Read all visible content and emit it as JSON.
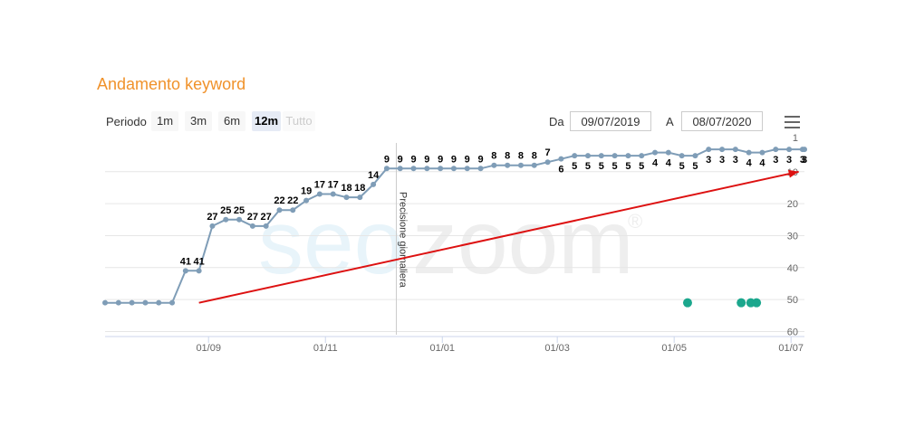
{
  "header": {
    "title": "Andamento keyword"
  },
  "controls": {
    "periodo_label": "Periodo",
    "ranges": [
      {
        "label": "1m",
        "state": "normal"
      },
      {
        "label": "3m",
        "state": "normal"
      },
      {
        "label": "6m",
        "state": "normal"
      },
      {
        "label": "12m",
        "state": "active"
      },
      {
        "label": "Tutto",
        "state": "disabled"
      }
    ],
    "from_label": "Da",
    "from_value": "09/07/2019",
    "to_label": "A",
    "to_value": "08/07/2020"
  },
  "menu": {
    "icon": "hamburger-menu-icon"
  },
  "watermark": {
    "text_a": "seo",
    "text_b": "zoom",
    "mark": "®"
  },
  "chart_data": {
    "type": "line",
    "x_ticks": [
      "01/09",
      "01/11",
      "01/01",
      "01/03",
      "01/05",
      "01/07"
    ],
    "y_ticks": [
      "1",
      "10",
      "20",
      "30",
      "40",
      "50",
      "60"
    ],
    "ylim": [
      60,
      1
    ],
    "y_reversed": true,
    "plot_line_label": "Precisione giornaliera",
    "plot_line_date": "2019-12-08",
    "series": [
      {
        "points": [
          [
            "2019-07-09",
            51
          ],
          [
            "2019-07-16",
            51
          ],
          [
            "2019-07-23",
            51
          ],
          [
            "2019-07-30",
            51
          ],
          [
            "2019-08-06",
            51
          ],
          [
            "2019-08-13",
            51
          ],
          [
            "2019-08-20",
            41
          ],
          [
            "2019-08-27",
            41
          ],
          [
            "2019-09-03",
            27
          ],
          [
            "2019-09-10",
            25
          ],
          [
            "2019-09-17",
            25
          ],
          [
            "2019-09-24",
            27
          ],
          [
            "2019-10-01",
            27
          ],
          [
            "2019-10-08",
            22
          ],
          [
            "2019-10-15",
            22
          ],
          [
            "2019-10-22",
            19
          ],
          [
            "2019-10-29",
            17
          ],
          [
            "2019-11-05",
            17
          ],
          [
            "2019-11-12",
            18
          ],
          [
            "2019-11-19",
            18
          ],
          [
            "2019-11-26",
            14
          ],
          [
            "2019-12-03",
            9
          ],
          [
            "2019-12-10",
            9
          ],
          [
            "2019-12-17",
            9
          ],
          [
            "2019-12-24",
            9
          ],
          [
            "2019-12-31",
            9
          ],
          [
            "2020-01-07",
            9
          ],
          [
            "2020-01-14",
            9
          ],
          [
            "2020-01-21",
            9
          ],
          [
            "2020-01-28",
            8
          ],
          [
            "2020-02-04",
            8
          ],
          [
            "2020-02-11",
            8
          ],
          [
            "2020-02-18",
            8
          ],
          [
            "2020-02-25",
            7
          ],
          [
            "2020-03-03",
            6
          ],
          [
            "2020-03-10",
            5
          ],
          [
            "2020-03-17",
            5
          ],
          [
            "2020-03-24",
            5
          ],
          [
            "2020-03-31",
            5
          ],
          [
            "2020-04-07",
            5
          ],
          [
            "2020-04-14",
            5
          ],
          [
            "2020-04-21",
            4
          ],
          [
            "2020-04-28",
            4
          ],
          [
            "2020-05-05",
            5
          ],
          [
            "2020-05-12",
            5
          ],
          [
            "2020-05-19",
            3
          ],
          [
            "2020-05-26",
            3
          ],
          [
            "2020-06-02",
            3
          ],
          [
            "2020-06-09",
            4
          ],
          [
            "2020-06-16",
            4
          ],
          [
            "2020-06-23",
            3
          ],
          [
            "2020-06-30",
            3
          ],
          [
            "2020-07-07",
            3
          ],
          [
            "2020-07-08",
            3
          ]
        ],
        "labels": [
          {
            "date": "2019-08-20",
            "text": "41"
          },
          {
            "date": "2019-08-27",
            "text": "41"
          },
          {
            "date": "2019-09-03",
            "text": "27"
          },
          {
            "date": "2019-09-10",
            "text": "25"
          },
          {
            "date": "2019-09-17",
            "text": "25"
          },
          {
            "date": "2019-09-24",
            "text": "27"
          },
          {
            "date": "2019-10-01",
            "text": "27"
          },
          {
            "date": "2019-10-08",
            "text": "22"
          },
          {
            "date": "2019-10-15",
            "text": "22"
          },
          {
            "date": "2019-10-22",
            "text": "19"
          },
          {
            "date": "2019-10-29",
            "text": "17"
          },
          {
            "date": "2019-11-05",
            "text": "17"
          },
          {
            "date": "2019-11-12",
            "text": "18"
          },
          {
            "date": "2019-11-19",
            "text": "18"
          },
          {
            "date": "2019-11-26",
            "text": "14"
          },
          {
            "date": "2019-12-03",
            "text": "9"
          },
          {
            "date": "2019-12-10",
            "text": "9"
          },
          {
            "date": "2019-12-17",
            "text": "9"
          },
          {
            "date": "2019-12-24",
            "text": "9"
          },
          {
            "date": "2019-12-31",
            "text": "9"
          },
          {
            "date": "2020-01-07",
            "text": "9"
          },
          {
            "date": "2020-01-14",
            "text": "9"
          },
          {
            "date": "2020-01-21",
            "text": "9"
          },
          {
            "date": "2020-01-28",
            "text": "8"
          },
          {
            "date": "2020-02-04",
            "text": "8"
          },
          {
            "date": "2020-02-11",
            "text": "8"
          },
          {
            "date": "2020-02-18",
            "text": "8"
          },
          {
            "date": "2020-02-25",
            "text": "7"
          },
          {
            "date": "2020-03-03",
            "text": "6",
            "below": true
          },
          {
            "date": "2020-03-10",
            "text": "5",
            "below": true
          },
          {
            "date": "2020-03-17",
            "text": "5",
            "below": true
          },
          {
            "date": "2020-03-24",
            "text": "5",
            "below": true
          },
          {
            "date": "2020-03-31",
            "text": "5",
            "below": true
          },
          {
            "date": "2020-04-07",
            "text": "5",
            "below": true
          },
          {
            "date": "2020-04-14",
            "text": "5",
            "below": true
          },
          {
            "date": "2020-04-21",
            "text": "4",
            "below": true
          },
          {
            "date": "2020-04-28",
            "text": "4",
            "below": true
          },
          {
            "date": "2020-05-05",
            "text": "5",
            "below": true
          },
          {
            "date": "2020-05-12",
            "text": "5",
            "below": true
          },
          {
            "date": "2020-05-19",
            "text": "3",
            "below": true
          },
          {
            "date": "2020-05-26",
            "text": "3",
            "below": true
          },
          {
            "date": "2020-06-02",
            "text": "3",
            "below": true
          },
          {
            "date": "2020-06-09",
            "text": "4",
            "below": true
          },
          {
            "date": "2020-06-16",
            "text": "4",
            "below": true
          },
          {
            "date": "2020-06-23",
            "text": "3",
            "below": true
          },
          {
            "date": "2020-06-30",
            "text": "3",
            "below": true
          },
          {
            "date": "2020-07-07",
            "text": "3",
            "below": true
          },
          {
            "date": "2020-07-08",
            "text": "3",
            "below": true
          }
        ]
      }
    ],
    "events": {
      "y": 51,
      "dates": [
        "2020-05-08",
        "2020-06-05",
        "2020-06-10",
        "2020-06-13"
      ]
    },
    "trend_arrow": {
      "from": [
        "2019-08-27",
        51
      ],
      "to": [
        "2020-07-05",
        10
      ],
      "color": "#dd1111"
    },
    "colors": {
      "line": "#7f9db7",
      "marker": "#7f9db7",
      "events": "#1ba78d",
      "grid": "#e6e6e6"
    }
  }
}
